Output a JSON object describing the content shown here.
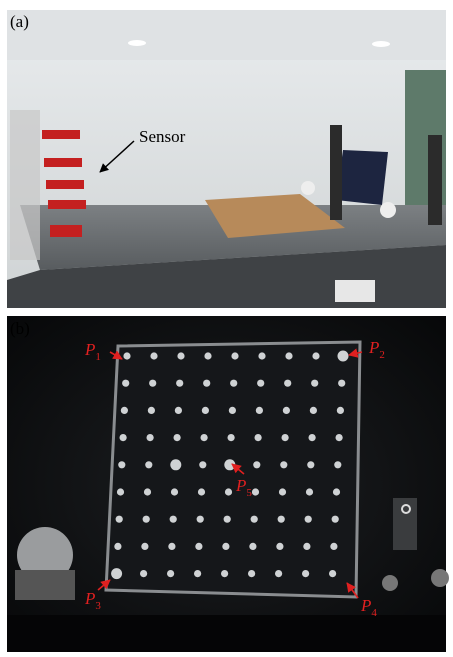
{
  "panel_a": {
    "label": "(a)",
    "annotation": "Sensor"
  },
  "panel_b": {
    "label": "(b)",
    "points": [
      {
        "base": "P",
        "sub": "1"
      },
      {
        "base": "P",
        "sub": "2"
      },
      {
        "base": "P",
        "sub": "3"
      },
      {
        "base": "P",
        "sub": "4"
      },
      {
        "base": "P",
        "sub": "5"
      }
    ]
  }
}
